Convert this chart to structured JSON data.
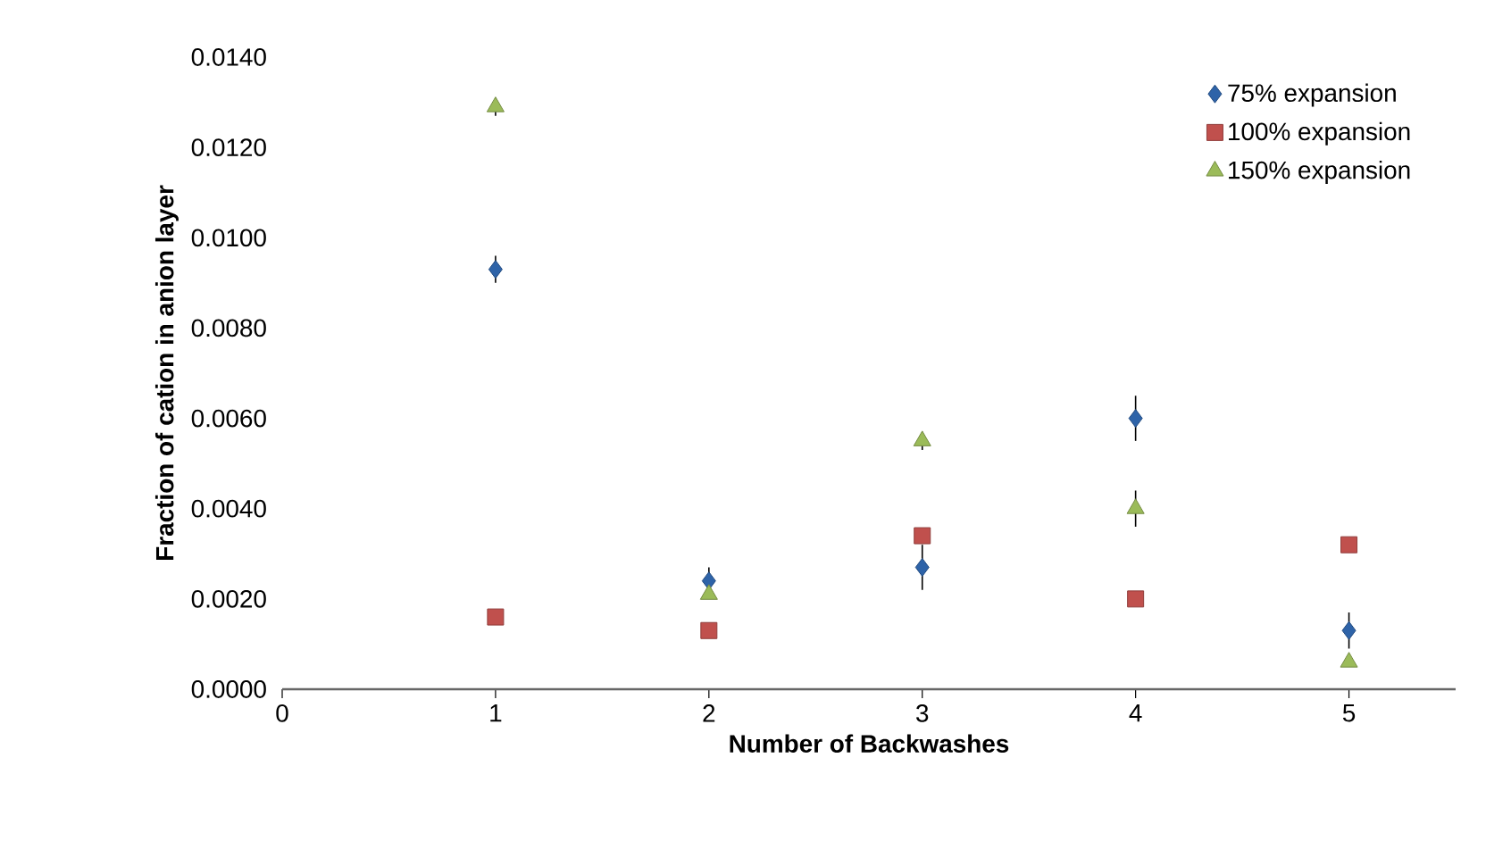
{
  "chart_data": {
    "type": "scatter",
    "xlabel": "Number of Backwashes",
    "ylabel": "Fraction of cation in anion layer",
    "xlim": [
      0,
      5.5
    ],
    "xticks": [
      0,
      1,
      2,
      3,
      4,
      5
    ],
    "ylim": [
      0,
      0.014
    ],
    "yticks": [
      {
        "value": 0,
        "label": "0.0000"
      },
      {
        "value": 0.002,
        "label": "0.0020"
      },
      {
        "value": 0.004,
        "label": "0.0040"
      },
      {
        "value": 0.006,
        "label": "0.0060"
      },
      {
        "value": 0.008,
        "label": "0.0080"
      },
      {
        "value": 0.01,
        "label": "0.0100"
      },
      {
        "value": 0.012,
        "label": "0.0120"
      },
      {
        "value": 0.014,
        "label": "0.0140"
      }
    ],
    "grid": false,
    "legend": "top right",
    "x": [
      1,
      2,
      3,
      4,
      5
    ],
    "series": [
      {
        "name": "75% expansion",
        "color": "#2e63a8",
        "marker": "diamond",
        "values": [
          0.0093,
          0.0024,
          0.0027,
          0.006,
          0.0013
        ],
        "errors": [
          0.0003,
          0.0003,
          0.0005,
          0.0005,
          0.0004
        ]
      },
      {
        "name": "100% expansion",
        "color": "#c0504d",
        "marker": "square",
        "values": [
          0.0016,
          0.0013,
          0.0034,
          0.002,
          0.0032
        ]
      },
      {
        "name": "150% expansion",
        "color": "#9bbb59",
        "marker": "triangle",
        "values": [
          0.0129,
          0.0021,
          0.0055,
          0.004,
          0.0006
        ],
        "errors": [
          0.0002,
          null,
          0.0002,
          0.0004,
          null
        ]
      }
    ]
  }
}
